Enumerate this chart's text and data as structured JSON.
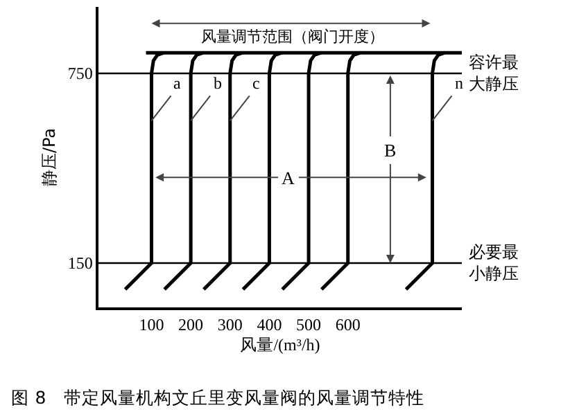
{
  "chart_data": {
    "type": "line",
    "title": "图 8　带定风量机构文丘里变风量阀的风量调节特性",
    "xlabel": "风量/(m³/h)",
    "ylabel": "静压/Pa",
    "xlim": [
      -35,
      890
    ],
    "ylim": [
      10,
      960
    ],
    "xticks": [
      100,
      200,
      300,
      400,
      500,
      600
    ],
    "yticks": [
      150,
      750
    ],
    "grid": false,
    "legend": false,
    "marker": "none",
    "line_style": "solid",
    "series": [
      {
        "name": "a",
        "color": "#000000",
        "x": [
          33,
          100,
          100,
          105,
          115,
          132
        ],
        "values": [
          67,
          150,
          750,
          790,
          808,
          815
        ]
      },
      {
        "name": "b",
        "color": "#000000",
        "x": [
          133,
          200,
          200,
          205,
          215,
          232
        ],
        "values": [
          67,
          150,
          750,
          790,
          808,
          815
        ]
      },
      {
        "name": "c",
        "color": "#000000",
        "x": [
          233,
          300,
          300,
          305,
          315,
          332
        ],
        "values": [
          67,
          150,
          750,
          790,
          808,
          815
        ]
      },
      {
        "color": "#000000",
        "x": [
          333,
          400,
          400,
          405,
          415,
          432
        ],
        "values": [
          67,
          150,
          750,
          790,
          808,
          815
        ]
      },
      {
        "color": "#000000",
        "x": [
          433,
          500,
          500,
          505,
          515,
          532
        ],
        "values": [
          67,
          150,
          750,
          790,
          808,
          815
        ]
      },
      {
        "color": "#000000",
        "x": [
          533,
          600,
          600,
          605,
          615,
          632
        ],
        "values": [
          67,
          150,
          750,
          790,
          808,
          815
        ]
      },
      {
        "name": "n",
        "color": "#000000",
        "x": [
          748,
          815,
          815,
          820,
          830,
          847
        ],
        "values": [
          67,
          150,
          750,
          790,
          808,
          815
        ]
      },
      {
        "color": "#000000",
        "x": [
          86,
          890
        ],
        "values": [
          815,
          815
        ]
      }
    ],
    "ref_lines": [
      {
        "axis": "y",
        "value": 750,
        "label": "容许最大静压",
        "color": "#000000"
      },
      {
        "axis": "y",
        "value": 150,
        "label": "必要最小静压",
        "color": "#000000"
      }
    ],
    "annotations": [
      "风量调节范围（阀门开度）",
      {
        "text": "A",
        "x": 450,
        "y": 421
      },
      {
        "text": "B",
        "x": 708,
        "y": 509
      }
    ]
  }
}
